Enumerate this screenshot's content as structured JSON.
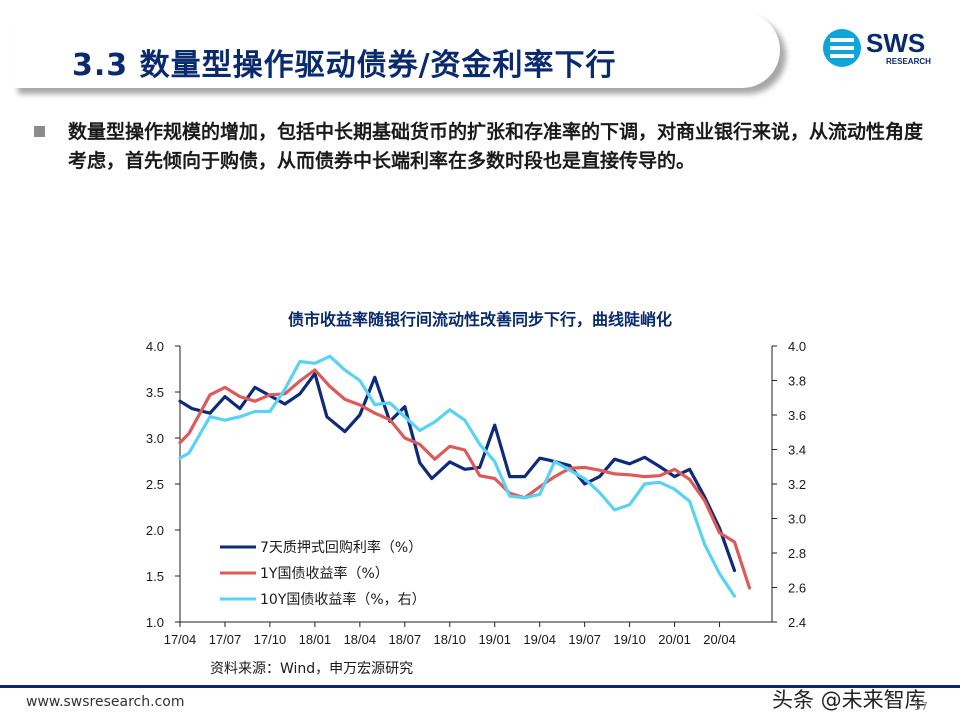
{
  "header": {
    "title": "3.3 数量型操作驱动债券/资金利率下行",
    "logo_text": "SWS",
    "logo_subtext": "RESEARCH"
  },
  "bullet": {
    "text": "数量型操作规模的增加，包括中长期基础货币的扩张和存准率的下调，对商业银行来说，从流动性角度考虑，首先倾向于购债，从而债券中长端利率在多数时段也是直接传导的。"
  },
  "chart_data": {
    "type": "line",
    "title": "债市收益率随银行间流动性改善同步下行，曲线陡峭化",
    "x_ticks": [
      "17/04",
      "17/07",
      "17/10",
      "18/01",
      "18/04",
      "18/07",
      "18/10",
      "19/01",
      "19/04",
      "19/07",
      "19/10",
      "20/01",
      "20/04"
    ],
    "ylim_left": [
      1.0,
      4.0
    ],
    "yticks_left": [
      "1.0",
      "1.5",
      "2.0",
      "2.5",
      "3.0",
      "3.5",
      "4.0"
    ],
    "ylim_right": [
      2.4,
      4.0
    ],
    "yticks_right": [
      "2.4",
      "2.6",
      "2.8",
      "3.0",
      "3.2",
      "3.4",
      "3.6",
      "3.8",
      "4.0"
    ],
    "x_range_months": [
      0,
      39.5
    ],
    "series": [
      {
        "name": "7天质押式回购利率（%）",
        "axis": "left",
        "color": "#0e2a7b",
        "x": [
          0,
          0.8,
          2,
          3,
          4,
          5,
          6,
          7,
          8,
          9,
          9.8,
          11,
          12,
          13,
          14,
          15,
          16,
          16.8,
          18,
          19,
          20,
          21,
          22,
          23,
          24,
          24.6,
          26,
          27,
          28,
          29,
          30,
          31,
          32,
          33,
          34,
          35,
          36,
          37,
          38,
          39
        ],
        "y": [
          3.4,
          3.32,
          3.27,
          3.45,
          3.32,
          3.55,
          3.46,
          3.37,
          3.48,
          3.7,
          3.23,
          3.07,
          3.25,
          3.66,
          3.18,
          3.34,
          2.73,
          2.56,
          2.74,
          2.66,
          2.68,
          3.14,
          2.58,
          2.58,
          2.78,
          2.76,
          2.7,
          2.5,
          2.58,
          2.77,
          2.72,
          2.79,
          2.69,
          2.58,
          2.66,
          2.36,
          2.02,
          1.56,
          null,
          null
        ]
      },
      {
        "name": "1Y国债收益率（%）",
        "axis": "left",
        "color": "#de5a5a",
        "x": [
          0,
          0.6,
          2,
          3,
          4,
          5,
          6,
          7,
          8,
          9,
          10,
          11,
          12,
          13,
          14,
          15,
          16,
          17,
          18,
          19,
          20,
          21,
          22,
          23,
          24,
          25,
          26,
          27,
          28,
          29,
          30,
          31,
          32,
          33,
          34,
          35,
          36,
          37,
          38,
          39
        ],
        "y": [
          2.95,
          3.05,
          3.47,
          3.55,
          3.45,
          3.4,
          3.47,
          3.48,
          3.62,
          3.74,
          3.56,
          3.42,
          3.36,
          3.27,
          3.2,
          3.0,
          2.93,
          2.77,
          2.91,
          2.87,
          2.59,
          2.56,
          2.4,
          2.35,
          2.47,
          2.58,
          2.67,
          2.68,
          2.65,
          2.61,
          2.6,
          2.58,
          2.59,
          2.66,
          2.55,
          2.32,
          1.97,
          1.87,
          1.37,
          null
        ]
      },
      {
        "name": "10Y国债收益率（%，右）",
        "axis": "right",
        "color": "#5ad2f4",
        "x": [
          0,
          0.6,
          2,
          3,
          4,
          5,
          6,
          7,
          8,
          9,
          10,
          11,
          12,
          13,
          14,
          15,
          16,
          17,
          18,
          19,
          20,
          21,
          22,
          23,
          24,
          25,
          26,
          27,
          28,
          29,
          30,
          31,
          32,
          33,
          34,
          35,
          36,
          37,
          38,
          39
        ],
        "y": [
          3.35,
          3.38,
          3.59,
          3.57,
          3.59,
          3.62,
          3.62,
          3.75,
          3.91,
          3.9,
          3.94,
          3.86,
          3.8,
          3.66,
          3.67,
          3.59,
          3.51,
          3.56,
          3.63,
          3.57,
          3.43,
          3.33,
          3.13,
          3.12,
          3.14,
          3.33,
          3.28,
          3.23,
          3.15,
          3.05,
          3.08,
          3.2,
          3.21,
          3.17,
          3.1,
          2.85,
          2.68,
          2.55,
          null,
          null
        ]
      }
    ],
    "source": "资料来源：Wind，申万宏源研究"
  },
  "footer": {
    "url": "www.swsresearch.com",
    "watermark": "头条 @未来智库",
    "page": "57"
  },
  "colors": {
    "brand": "#0a2a6e",
    "logo_cyan": "#0ea5d9"
  }
}
